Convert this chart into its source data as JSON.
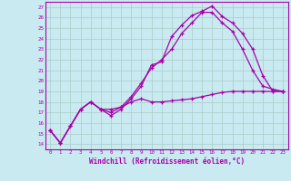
{
  "xlabel": "Windchill (Refroidissement éolien,°C)",
  "bg_color": "#c8eaf0",
  "line_color": "#aa00aa",
  "grid_color": "#aaccc8",
  "x_ticks": [
    0,
    1,
    2,
    3,
    4,
    5,
    6,
    7,
    8,
    9,
    10,
    11,
    12,
    13,
    14,
    15,
    16,
    17,
    18,
    19,
    20,
    21,
    22,
    23
  ],
  "y_ticks": [
    14,
    15,
    16,
    17,
    18,
    19,
    20,
    21,
    22,
    23,
    24,
    25,
    26,
    27
  ],
  "xlim": [
    -0.5,
    23.5
  ],
  "ylim": [
    13.5,
    27.5
  ],
  "line1_x": [
    0,
    1,
    2,
    3,
    4,
    5,
    6,
    7,
    8,
    9,
    10,
    11,
    12,
    13,
    14,
    15,
    16,
    17,
    18,
    19,
    20,
    21,
    22,
    23
  ],
  "line1_y": [
    15.3,
    14.1,
    15.7,
    17.3,
    18.0,
    17.3,
    17.3,
    17.5,
    18.0,
    18.3,
    18.0,
    18.0,
    18.1,
    18.2,
    18.3,
    18.5,
    18.7,
    18.9,
    19.0,
    19.0,
    19.0,
    19.0,
    19.0,
    19.0
  ],
  "line2_x": [
    0,
    1,
    2,
    3,
    4,
    5,
    6,
    7,
    8,
    9,
    10,
    11,
    12,
    13,
    14,
    15,
    16,
    17,
    18,
    19,
    20,
    21,
    22,
    23
  ],
  "line2_y": [
    15.3,
    14.1,
    15.7,
    17.3,
    18.0,
    17.3,
    16.7,
    17.3,
    18.3,
    19.5,
    21.5,
    21.8,
    24.2,
    25.3,
    26.2,
    26.6,
    27.1,
    26.1,
    25.5,
    24.5,
    23.0,
    20.5,
    19.0,
    19.0
  ],
  "line3_x": [
    0,
    1,
    2,
    3,
    4,
    5,
    6,
    7,
    8,
    9,
    10,
    11,
    12,
    13,
    14,
    15,
    16,
    17,
    18,
    19,
    20,
    21,
    22,
    23
  ],
  "line3_y": [
    15.3,
    14.1,
    15.7,
    17.3,
    18.0,
    17.3,
    17.0,
    17.5,
    18.5,
    19.8,
    21.2,
    22.0,
    23.0,
    24.5,
    25.5,
    26.5,
    26.5,
    25.5,
    24.7,
    23.0,
    21.0,
    19.5,
    19.2,
    19.0
  ]
}
